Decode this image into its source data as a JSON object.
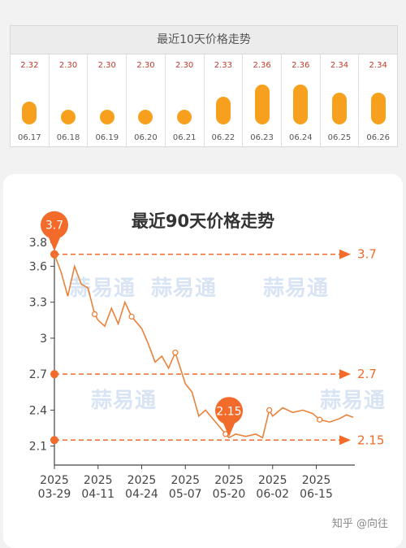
{
  "top_panel": {
    "title": "最近10天价格走势",
    "days": [
      {
        "date": "06.17",
        "price": "2.32",
        "value": 2.32
      },
      {
        "date": "06.18",
        "price": "2.30",
        "value": 2.3
      },
      {
        "date": "06.19",
        "price": "2.30",
        "value": 2.3
      },
      {
        "date": "06.20",
        "price": "2.30",
        "value": 2.3
      },
      {
        "date": "06.21",
        "price": "2.30",
        "value": 2.3
      },
      {
        "date": "06.22",
        "price": "2.33",
        "value": 2.33
      },
      {
        "date": "06.23",
        "price": "2.36",
        "value": 2.36
      },
      {
        "date": "06.24",
        "price": "2.36",
        "value": 2.36
      },
      {
        "date": "06.25",
        "price": "2.34",
        "value": 2.34
      },
      {
        "date": "06.26",
        "price": "2.34",
        "value": 2.34
      }
    ]
  },
  "watermark": "蒜易通",
  "footer": "知乎 @向往",
  "colors": {
    "line": "#e8823a",
    "marker": "#f26b2b",
    "bar": "#f7a01d",
    "price_text": "#c0392b"
  },
  "chart_data": {
    "type": "line",
    "title": "最近90天价格走势",
    "xlabel": "",
    "ylabel": "",
    "x_ticks": [
      "2025\n03-29",
      "2025\n04-11",
      "2025\n04-24",
      "2025\n05-07",
      "2025\n05-20",
      "2025\n06-02",
      "2025\n06-15"
    ],
    "y_ticks": [
      2.1,
      2.4,
      2.7,
      3,
      3.3,
      3.6,
      3.8
    ],
    "y_tick_labels": [
      "2.1",
      "2.4",
      "2.7",
      "3",
      "3.3",
      "3.6",
      "3.8"
    ],
    "ylim": [
      2.05,
      3.8
    ],
    "x_range": [
      "2025-03-29",
      "2025-06-26"
    ],
    "grid": false,
    "reference_lines": [
      {
        "value": 3.7,
        "label": "3.7"
      },
      {
        "value": 2.7,
        "label": "2.7"
      },
      {
        "value": 2.15,
        "label": "2.15"
      }
    ],
    "callouts": [
      {
        "x": "2025-03-29",
        "y": 3.7,
        "label": "3.7"
      },
      {
        "x": "2025-05-20",
        "y": 2.15,
        "label": "2.15"
      }
    ],
    "series": [
      {
        "x": [
          "2025-03-29",
          "2025-03-31",
          "2025-04-02",
          "2025-04-04",
          "2025-04-06",
          "2025-04-08",
          "2025-04-10",
          "2025-04-11",
          "2025-04-13",
          "2025-04-15",
          "2025-04-17",
          "2025-04-19",
          "2025-04-21",
          "2025-04-24",
          "2025-04-26",
          "2025-04-28",
          "2025-04-30",
          "2025-05-02",
          "2025-05-04",
          "2025-05-07",
          "2025-05-09",
          "2025-05-11",
          "2025-05-13",
          "2025-05-16",
          "2025-05-19",
          "2025-05-20",
          "2025-05-22",
          "2025-05-25",
          "2025-05-28",
          "2025-05-30",
          "2025-06-01",
          "2025-06-02",
          "2025-06-05",
          "2025-06-08",
          "2025-06-11",
          "2025-06-14",
          "2025-06-16",
          "2025-06-19",
          "2025-06-22",
          "2025-06-24",
          "2025-06-26"
        ],
        "y": [
          3.7,
          3.55,
          3.35,
          3.6,
          3.45,
          3.42,
          3.2,
          3.15,
          3.1,
          3.25,
          3.12,
          3.3,
          3.18,
          3.08,
          2.95,
          2.8,
          2.85,
          2.75,
          2.88,
          2.62,
          2.55,
          2.35,
          2.4,
          2.3,
          2.2,
          2.17,
          2.2,
          2.18,
          2.2,
          2.17,
          2.4,
          2.35,
          2.42,
          2.38,
          2.4,
          2.37,
          2.32,
          2.3,
          2.33,
          2.36,
          2.34
        ]
      }
    ]
  }
}
